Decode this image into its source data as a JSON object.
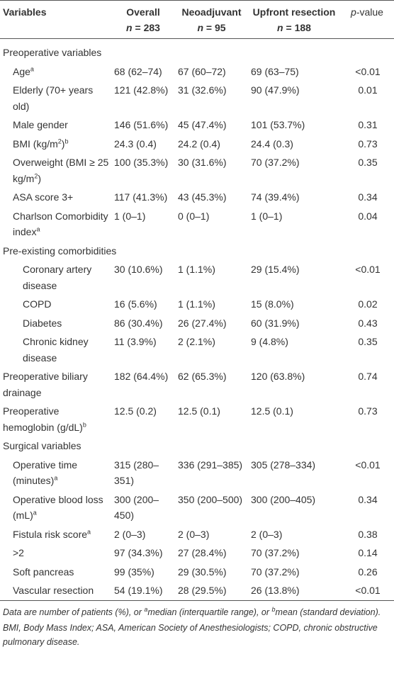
{
  "table": {
    "header": [
      {
        "name": [
          {
            "b": "Variables"
          }
        ]
      },
      {
        "name": [
          {
            "b": "Overall"
          }
        ],
        "count": [
          {
            "i": "n"
          },
          " = 283"
        ]
      },
      {
        "name": [
          {
            "b": "Neoadjuvant"
          }
        ],
        "count": [
          {
            "i": "n"
          },
          " = 95"
        ]
      },
      {
        "name": [
          {
            "b": "Upfront resection"
          }
        ],
        "count": [
          {
            "i": "n"
          },
          " = 188"
        ]
      },
      {
        "name": [
          {
            "i": "p"
          },
          "-value"
        ]
      }
    ],
    "groups": [
      {
        "title": "Preoperative variables",
        "rows": [
          {
            "label": [
              "Age",
              {
                "sup": "a"
              }
            ],
            "values": [
              "68 (62–74)",
              "67 (60–72)",
              "69 (63–75)",
              "<0.01"
            ]
          },
          {
            "label": [
              "Elderly (70+ years old)"
            ],
            "values": [
              "121 (42.8%)",
              "31 (32.6%)",
              "90 (47.9%)",
              "0.01"
            ]
          },
          {
            "label": [
              "Male gender"
            ],
            "values": [
              "146 (51.6%)",
              "45 (47.4%)",
              "101 (53.7%)",
              "0.31"
            ]
          },
          {
            "label": [
              "BMI (kg/m",
              {
                "sup": "2"
              },
              ")",
              {
                "sup": "b"
              }
            ],
            "values": [
              "24.3 (0.4)",
              "24.2 (0.4)",
              "24.4 (0.3)",
              "0.73"
            ]
          },
          {
            "label": [
              "Overweight (BMI ≥ 25 kg/m",
              {
                "sup": "2"
              },
              ")"
            ],
            "values": [
              "100 (35.3%)",
              "30 (31.6%)",
              "70 (37.2%)",
              "0.35"
            ]
          },
          {
            "label": [
              "ASA score 3+"
            ],
            "values": [
              "117 (41.3%)",
              "43 (45.3%)",
              "74 (39.4%)",
              "0.34"
            ]
          },
          {
            "label": [
              "Charlson Comorbidity index",
              {
                "sup": "a"
              }
            ],
            "values": [
              "1 (0–1)",
              "0 (0–1)",
              "1 (0–1)",
              "0.04"
            ]
          }
        ]
      },
      {
        "title": "Pre-existing comorbidities",
        "rows": [
          {
            "label": [
              "Coronary artery disease"
            ],
            "values": [
              "30 (10.6%)",
              "1 (1.1%)",
              "29 (15.4%)",
              "<0.01"
            ]
          },
          {
            "label": [
              "COPD"
            ],
            "values": [
              "16 (5.6%)",
              "1 (1.1%)",
              "15 (8.0%)",
              "0.02"
            ]
          },
          {
            "label": [
              "Diabetes"
            ],
            "values": [
              "86 (30.4%)",
              "26 (27.4%)",
              "60 (31.9%)",
              "0.43"
            ]
          },
          {
            "label": [
              "Chronic kidney disease"
            ],
            "values": [
              "11 (3.9%)",
              "2 (2.1%)",
              "9 (4.8%)",
              "0.35"
            ]
          }
        ]
      },
      {
        "rows": [
          {
            "label": [
              "Preoperative biliary drainage"
            ],
            "values": [
              "182 (64.4%)",
              "62 (65.3%)",
              "120 (63.8%)",
              "0.74"
            ]
          },
          {
            "label": [
              "Preoperative hemoglobin (g/dL)",
              {
                "sup": "b"
              }
            ],
            "values": [
              "12.5 (0.2)",
              "12.5 (0.1)",
              "12.5 (0.1)",
              "0.73"
            ]
          }
        ]
      },
      {
        "title": "Surgical variables",
        "rows": [
          {
            "label": [
              "Operative time (minutes)",
              {
                "sup": "a"
              }
            ],
            "values": [
              "315 (280–351)",
              "336 (291–385)",
              "305 (278–334)",
              "<0.01"
            ]
          },
          {
            "label": [
              "Operative blood loss (mL)",
              {
                "sup": "a"
              }
            ],
            "values": [
              "300 (200–450)",
              "350 (200–500)",
              "300 (200–405)",
              "0.34"
            ]
          },
          {
            "label": [
              "Fistula risk score",
              {
                "sup": "a"
              }
            ],
            "values": [
              "2 (0–3)",
              "2 (0–3)",
              "2 (0–3)",
              "0.38"
            ]
          },
          {
            "label": [
              ">2"
            ],
            "values": [
              "97 (34.3%)",
              "27 (28.4%)",
              "70 (37.2%)",
              "0.14"
            ]
          },
          {
            "label": [
              "Soft pancreas"
            ],
            "values": [
              "99 (35%)",
              "29 (30.5%)",
              "70 (37.2%)",
              "0.26"
            ]
          },
          {
            "label": [
              "Vascular resection"
            ],
            "values": [
              "54 (19.1%)",
              "28 (29.5%)",
              "26 (13.8%)",
              "<0.01"
            ]
          }
        ]
      }
    ],
    "footnotes": [
      [
        "Data are number of patients (%), or ",
        {
          "sup": "a"
        },
        "median (interquartile range), or ",
        {
          "sup": "b"
        },
        "mean (standard deviation)."
      ],
      [
        "BMI, Body Mass Index; ASA, American Society of Anesthesiologists; COPD, chronic obstructive pulmonary disease."
      ]
    ]
  }
}
